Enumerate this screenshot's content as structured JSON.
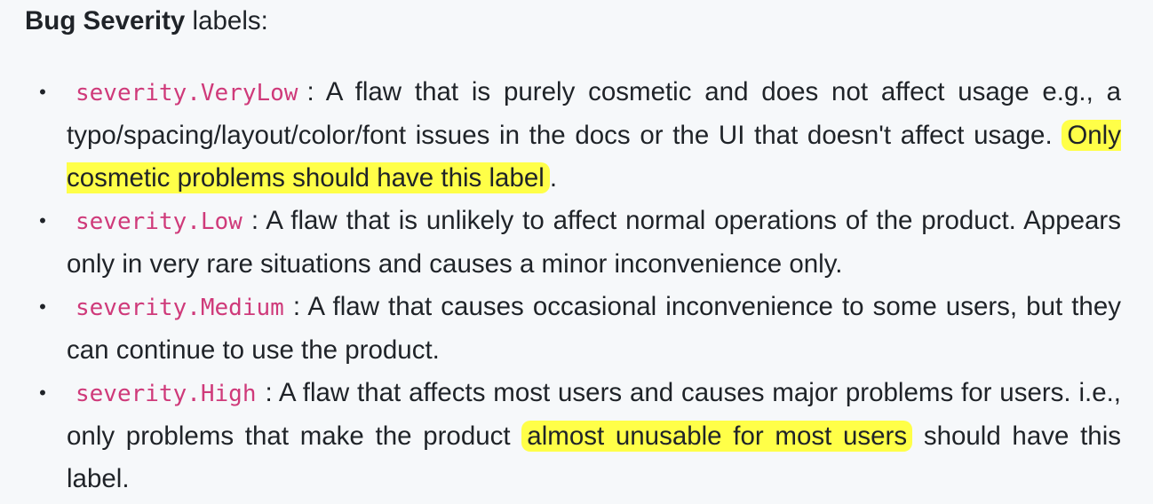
{
  "heading": {
    "bold": "Bug Severity",
    "rest": " labels:"
  },
  "items": [
    {
      "code": "severity.VeryLow",
      "text_before": ": A flaw that is purely cosmetic and does not affect usage e.g., a typo/spacing/layout/color/font issues in the docs or the UI that doesn't affect usage. ",
      "highlight": "Only cosmetic problems should have this label",
      "text_after": "."
    },
    {
      "code": "severity.Low",
      "text_before": ": A flaw that is unlikely to affect normal operations of the product. Appears only in very rare situations and causes a minor inconvenience only.",
      "highlight": "",
      "text_after": ""
    },
    {
      "code": "severity.Medium",
      "text_before": ": A flaw that causes occasional inconvenience to some users, but they can continue to use the product.",
      "highlight": "",
      "text_after": ""
    },
    {
      "code": "severity.High",
      "text_before": ": A flaw that affects most users and causes major problems for users. i.e., only problems that make the product ",
      "highlight": "almost unusable for most users",
      "text_after": " should have this label."
    }
  ],
  "bullet_glyph": "•",
  "colors": {
    "background": "#f6f8fa",
    "text": "#1f2328",
    "code": "#cf3a7a",
    "highlight": "#ffff48"
  }
}
